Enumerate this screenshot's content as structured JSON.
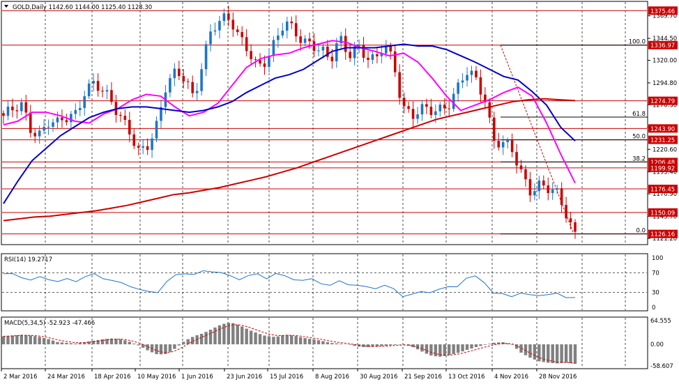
{
  "chart_data": [
    {
      "type": "candlestick",
      "panel": "price",
      "header_text": "GOLD,Daily  1142.60 1144.00 1125.40 1128.30",
      "symbol": "GOLD",
      "timeframe": "Daily",
      "ohlc_last": {
        "open": 1142.6,
        "high": 1144.0,
        "low": 1125.4,
        "close": 1128.3
      },
      "ylim": [
        1115,
        1385
      ],
      "price_ticks": [
        "1369.70",
        "1344.50",
        "1320.00",
        "1294.80",
        "1270.30",
        "1245.10",
        "1220.60",
        "1195.40",
        "1170.90",
        "1145.70",
        "1121.20"
      ],
      "x_tick_labels": [
        "2 Mar 2016",
        "24 Mar 2016",
        "18 Apr 2016",
        "10 May 2016",
        "1 Jun 2016",
        "23 Jun 2016",
        "15 Jul 2016",
        "8 Aug 2016",
        "30 Aug 2016",
        "21 Sep 2016",
        "13 Oct 2016",
        "4 Nov 2016",
        "28 Nov 2016"
      ],
      "horizontal_levels": [
        {
          "label": "1375.46",
          "value": 1375.46,
          "color": "#cc0000"
        },
        {
          "label": "1336.97",
          "value": 1336.97,
          "color": "#cc0000"
        },
        {
          "label": "1274.79",
          "value": 1274.79,
          "color": "#cc0000"
        },
        {
          "label": "1243.90",
          "value": 1243.9,
          "color": "#cc0000"
        },
        {
          "label": "1231.25",
          "value": 1231.25,
          "color": "#cc0000"
        },
        {
          "label": "1206.48",
          "value": 1206.48,
          "color": "#cc0000"
        },
        {
          "label": "1199.92",
          "value": 1199.92,
          "color": "#cc0000"
        },
        {
          "label": "1176.45",
          "value": 1176.45,
          "color": "#cc0000"
        },
        {
          "label": "1150.09",
          "value": 1150.09,
          "color": "#cc0000"
        },
        {
          "label": "1126.16",
          "value": 1126.16,
          "color": "#cc0000"
        }
      ],
      "fibonacci": {
        "high": 1336.97,
        "low": 1126.16,
        "levels": [
          {
            "label": "100.0",
            "value": 1336.97
          },
          {
            "label": "61.8",
            "value": 1256.6
          },
          {
            "label": "50.0",
            "value": 1231.25
          },
          {
            "label": "38.2",
            "value": 1206.48
          },
          {
            "label": "0.0",
            "value": 1126.16
          }
        ]
      },
      "moving_averages": [
        {
          "color": "#ff00ff",
          "values": [
            1248,
            1252,
            1262,
            1262,
            1258,
            1252,
            1250,
            1260,
            1266,
            1276,
            1282,
            1280,
            1268,
            1258,
            1262,
            1272,
            1292,
            1312,
            1322,
            1326,
            1328,
            1334,
            1338,
            1342,
            1340,
            1334,
            1330,
            1325,
            1328,
            1318,
            1300,
            1280,
            1264,
            1270,
            1276,
            1284,
            1290,
            1280,
            1250,
            1215,
            1183
          ]
        },
        {
          "color": "#0000cc",
          "values": [
            1160,
            1185,
            1208,
            1222,
            1236,
            1246,
            1256,
            1262,
            1266,
            1268,
            1268,
            1266,
            1264,
            1262,
            1264,
            1268,
            1274,
            1284,
            1292,
            1300,
            1304,
            1310,
            1320,
            1330,
            1334,
            1334,
            1334,
            1336,
            1338,
            1336,
            1336,
            1332,
            1325,
            1318,
            1310,
            1302,
            1298,
            1285,
            1270,
            1245,
            1230
          ]
        },
        {
          "color": "#cc0000",
          "values": [
            1141,
            1143,
            1145,
            1146,
            1148,
            1150,
            1152,
            1155,
            1158,
            1162,
            1166,
            1170,
            1172,
            1175,
            1178,
            1182,
            1186,
            1190,
            1195,
            1200,
            1206,
            1212,
            1218,
            1224,
            1230,
            1236,
            1242,
            1248,
            1254,
            1258,
            1262,
            1266,
            1270,
            1274,
            1276,
            1277,
            1276,
            1275
          ]
        }
      ],
      "close_path": [
        1258,
        1262,
        1268,
        1245,
        1240,
        1252,
        1246,
        1255,
        1262,
        1290,
        1294,
        1282,
        1270,
        1258,
        1242,
        1215,
        1222,
        1248,
        1300,
        1310,
        1300,
        1270,
        1320,
        1360,
        1370,
        1365,
        1340,
        1330,
        1315,
        1324,
        1340,
        1360,
        1352,
        1345,
        1340,
        1330,
        1315,
        1345,
        1330,
        1338,
        1322,
        1315,
        1340,
        1320,
        1270,
        1255,
        1262,
        1265,
        1268,
        1272,
        1285,
        1305,
        1300,
        1283,
        1232,
        1225,
        1218,
        1196,
        1178,
        1182,
        1175,
        1168,
        1150,
        1128
      ]
    },
    {
      "type": "line",
      "panel": "rsi",
      "header_text": "RSI(14) 19.2717",
      "indicator": "RSI",
      "period": 14,
      "current_value": 19.2717,
      "levels": [
        "100",
        "70",
        "30",
        "0"
      ],
      "ylim": [
        0,
        100
      ],
      "values": [
        68,
        66,
        62,
        55,
        60,
        58,
        52,
        56,
        54,
        62,
        66,
        60,
        54,
        48,
        44,
        36,
        30,
        32,
        52,
        64,
        70,
        66,
        72,
        74,
        70,
        62,
        58,
        64,
        66,
        60,
        68,
        62,
        58,
        54,
        56,
        50,
        44,
        52,
        48,
        44,
        40,
        40,
        44,
        36,
        24,
        26,
        30,
        32,
        36,
        40,
        44,
        58,
        62,
        52,
        28,
        26,
        24,
        28,
        24,
        26,
        25,
        27,
        22,
        19
      ]
    },
    {
      "type": "bar",
      "panel": "macd",
      "header_text": "MACD(5,34,5) -52.923 -47.466",
      "indicator": "MACD",
      "params": "5,34,5",
      "current_values": [
        -52.923,
        -47.466
      ],
      "y_tick_labels": [
        "64.555",
        "0.00",
        "-58.607"
      ],
      "ylim": [
        -58.607,
        64.555
      ],
      "histogram": [
        22,
        24,
        26,
        24,
        20,
        14,
        6,
        4,
        2,
        6,
        10,
        14,
        16,
        14,
        6,
        -4,
        -18,
        -28,
        -26,
        -10,
        10,
        22,
        30,
        42,
        54,
        60,
        52,
        40,
        30,
        22,
        20,
        26,
        24,
        18,
        14,
        10,
        4,
        2,
        0,
        -6,
        -8,
        -6,
        -4,
        -2,
        0,
        -6,
        -18,
        -30,
        -34,
        -30,
        -24,
        -16,
        -8,
        -2,
        4,
        6,
        0,
        -22,
        -36,
        -46,
        -50,
        -52,
        -50,
        -53
      ]
    }
  ]
}
